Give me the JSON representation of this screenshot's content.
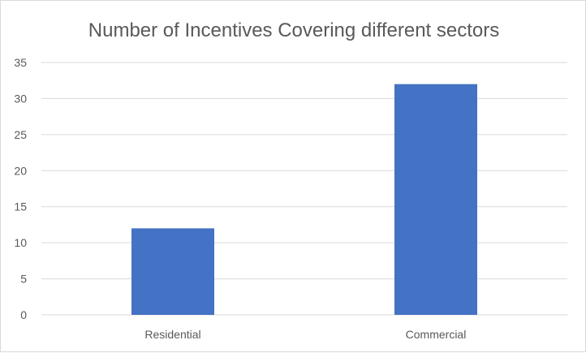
{
  "chart_data": {
    "type": "bar",
    "title": "Number of Incentives Covering different sectors",
    "xlabel": "",
    "ylabel": "",
    "categories": [
      "Residential",
      "Commercial"
    ],
    "values": [
      12,
      32
    ],
    "ylim": [
      0,
      35
    ],
    "y_ticks": [
      0,
      5,
      10,
      15,
      20,
      25,
      30,
      35
    ],
    "grid": true,
    "legend": "none",
    "bar_color": "#4472C4"
  }
}
